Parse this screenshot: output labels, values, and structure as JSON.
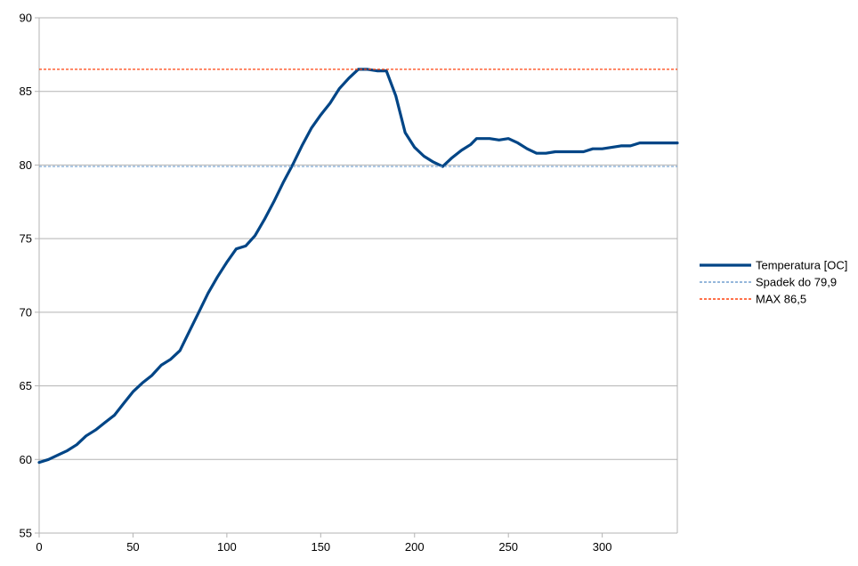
{
  "chart_data": {
    "type": "line",
    "title": "",
    "xlabel": "",
    "ylabel": "",
    "xlim": [
      0,
      340
    ],
    "ylim": [
      55,
      90
    ],
    "x_ticks": [
      0,
      50,
      100,
      150,
      200,
      250,
      300
    ],
    "y_ticks": [
      55,
      60,
      65,
      70,
      75,
      80,
      85,
      90
    ],
    "grid": "horizontal",
    "legend_position": "right",
    "series": [
      {
        "name": "Temperatura [OC]",
        "style": "solid",
        "color": "#004586",
        "points": [
          [
            0,
            59.8
          ],
          [
            5,
            60.0
          ],
          [
            10,
            60.3
          ],
          [
            15,
            60.6
          ],
          [
            20,
            61.0
          ],
          [
            25,
            61.6
          ],
          [
            30,
            62.0
          ],
          [
            35,
            62.5
          ],
          [
            40,
            63.0
          ],
          [
            45,
            63.8
          ],
          [
            50,
            64.6
          ],
          [
            55,
            65.2
          ],
          [
            60,
            65.7
          ],
          [
            65,
            66.4
          ],
          [
            70,
            66.8
          ],
          [
            75,
            67.4
          ],
          [
            80,
            68.7
          ],
          [
            85,
            70.0
          ],
          [
            90,
            71.3
          ],
          [
            95,
            72.4
          ],
          [
            100,
            73.4
          ],
          [
            105,
            74.3
          ],
          [
            110,
            74.5
          ],
          [
            115,
            75.2
          ],
          [
            120,
            76.3
          ],
          [
            125,
            77.5
          ],
          [
            130,
            78.8
          ],
          [
            135,
            80.0
          ],
          [
            140,
            81.3
          ],
          [
            145,
            82.5
          ],
          [
            150,
            83.4
          ],
          [
            155,
            84.2
          ],
          [
            160,
            85.2
          ],
          [
            165,
            85.9
          ],
          [
            170,
            86.5
          ],
          [
            175,
            86.5
          ],
          [
            180,
            86.4
          ],
          [
            185,
            86.4
          ],
          [
            190,
            84.7
          ],
          [
            195,
            82.2
          ],
          [
            200,
            81.2
          ],
          [
            205,
            80.6
          ],
          [
            210,
            80.2
          ],
          [
            215,
            79.9
          ],
          [
            220,
            80.5
          ],
          [
            225,
            81.0
          ],
          [
            230,
            81.4
          ],
          [
            233,
            81.8
          ],
          [
            240,
            81.8
          ],
          [
            245,
            81.7
          ],
          [
            250,
            81.8
          ],
          [
            255,
            81.5
          ],
          [
            260,
            81.1
          ],
          [
            265,
            80.8
          ],
          [
            270,
            80.8
          ],
          [
            275,
            80.9
          ],
          [
            280,
            80.9
          ],
          [
            285,
            80.9
          ],
          [
            290,
            80.9
          ],
          [
            295,
            81.1
          ],
          [
            300,
            81.1
          ],
          [
            305,
            81.2
          ],
          [
            310,
            81.3
          ],
          [
            315,
            81.3
          ],
          [
            320,
            81.5
          ],
          [
            330,
            81.5
          ],
          [
            340,
            81.5
          ]
        ]
      },
      {
        "name": "Spadek do 79,9",
        "style": "dotted",
        "color": "#729fcf",
        "value": 79.9
      },
      {
        "name": "MAX  86,5",
        "style": "dotted",
        "color": "#ff420e",
        "value": 86.5
      }
    ]
  }
}
